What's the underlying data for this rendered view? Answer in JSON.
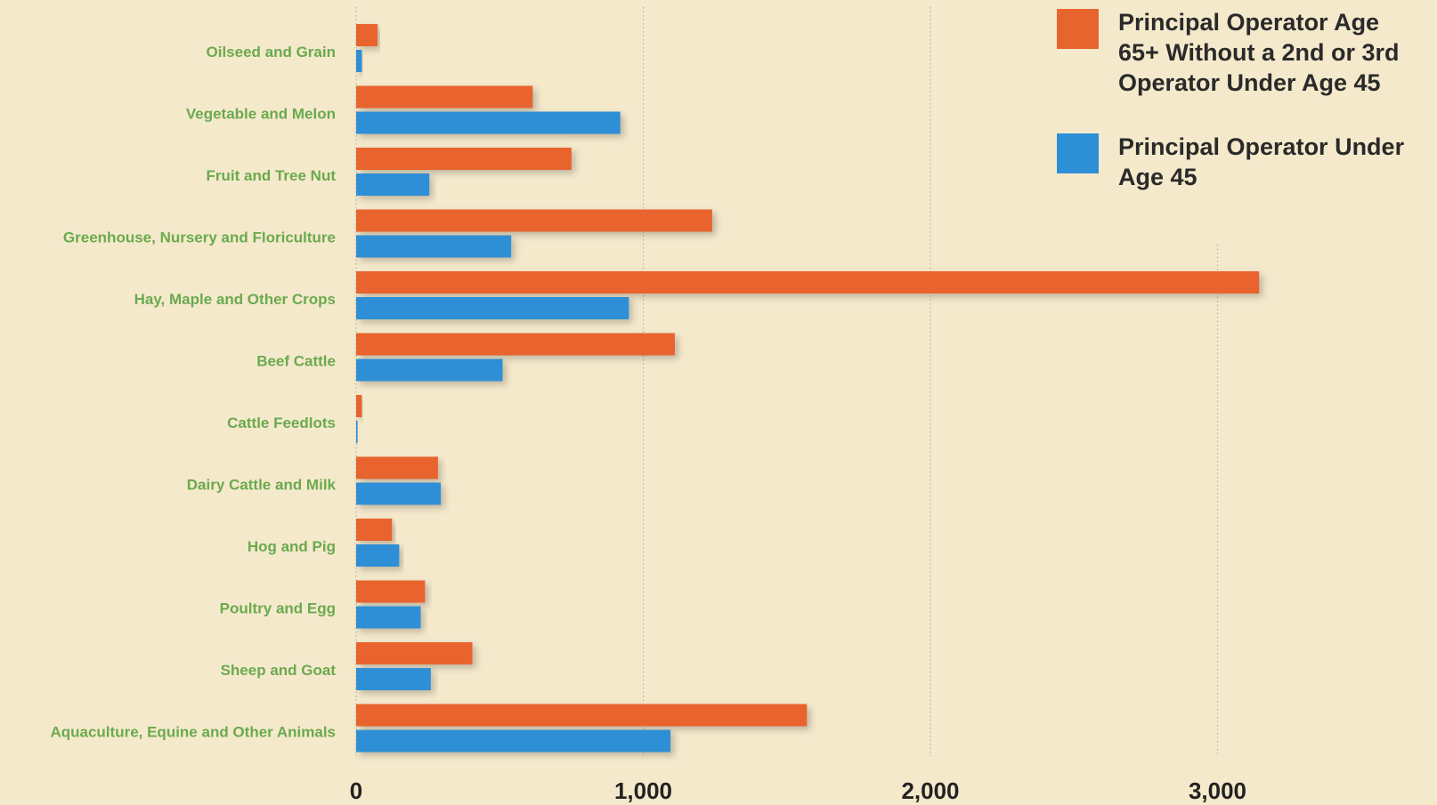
{
  "chart_data": {
    "type": "bar",
    "orientation": "horizontal",
    "categories": [
      "Oilseed and Grain",
      "Vegetable and Melon",
      "Fruit and Tree Nut",
      "Greenhouse, Nursery and Floriculture",
      "Hay, Maple and Other Crops",
      "Beef Cattle",
      "Cattle Feedlots",
      "Dairy Cattle and Milk",
      "Hog and Pig",
      "Poultry and Egg",
      "Sheep and Goat",
      "Aquaculture, Equine and Other Animals"
    ],
    "series": [
      {
        "name": "Principal Operator Age 65+ Without a 2nd or 3rd Operator Under Age 45",
        "legend_lines": [
          "Principal Operator Age",
          "65+ Without a 2nd or 3rd",
          "Operator Under Age 45"
        ],
        "color": "#e8642f",
        "values": [
          75,
          615,
          750,
          1240,
          3145,
          1110,
          20,
          285,
          125,
          240,
          405,
          1570
        ]
      },
      {
        "name": "Principal Operator Under Age 45",
        "legend_lines": [
          "Principal Operator Under",
          "Age 45"
        ],
        "color": "#2d8fd6",
        "values": [
          20,
          920,
          255,
          540,
          950,
          510,
          5,
          295,
          150,
          225,
          260,
          1095
        ]
      }
    ],
    "xlim": [
      0,
      3700
    ],
    "xticks": [
      0,
      1000,
      2000,
      3000
    ],
    "xtick_labels": [
      "0",
      "1,000",
      "2,000",
      "3,000"
    ],
    "grid": "vertical dotted",
    "legend_position": "top-right",
    "label_color": "#6aaa4e",
    "title": "",
    "xlabel": "",
    "ylabel": ""
  }
}
